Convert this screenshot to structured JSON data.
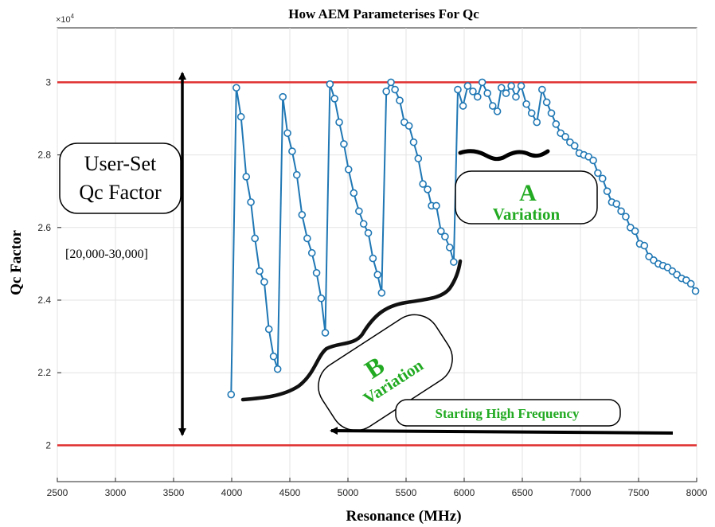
{
  "chart_data": {
    "type": "line",
    "title": "How AEM Parameterises For Qc",
    "xlabel": "Resonance (MHz)",
    "ylabel": "Qc Factor",
    "y_exponent_label": "×10",
    "y_exponent_power": "4",
    "xlim": [
      2500,
      8000
    ],
    "ylim": [
      1.9,
      3.15
    ],
    "x_ticks": [
      2500,
      3000,
      3500,
      4000,
      4500,
      5000,
      5500,
      6000,
      6500,
      7000,
      7500,
      8000
    ],
    "x_tick_labels": [
      "2500",
      "3000",
      "3500",
      "4000",
      "4500",
      "5000",
      "5500",
      "6000",
      "6500",
      "7000",
      "7500",
      "8000"
    ],
    "y_ticks": [
      2.0,
      2.2,
      2.4,
      2.6,
      2.8,
      3.0
    ],
    "y_tick_labels": [
      "2",
      "2.2",
      "2.4",
      "2.6",
      "2.8",
      "3"
    ],
    "grid": true,
    "line_color": "#1f77b4",
    "bound_color": "#e03030",
    "upper_bound": 3.0,
    "lower_bound": 2.0,
    "series": [
      {
        "x": [
          3995,
          4040,
          4080,
          4125,
          4165,
          4200,
          4240,
          4280,
          4320,
          4360,
          4395,
          4440,
          4480,
          4520,
          4560,
          4605,
          4650,
          4690,
          4730,
          4770,
          4805,
          4845,
          4885,
          4925,
          4965,
          5005,
          5050,
          5095,
          5135,
          5175,
          5215,
          5255,
          5290,
          5330,
          5370,
          5405,
          5445,
          5485,
          5525,
          5565,
          5605,
          5645,
          5685,
          5720,
          5760,
          5800,
          5835,
          5875,
          5910,
          5945,
          5990,
          6030,
          6075,
          6115,
          6155,
          6200,
          6245,
          6285,
          6320,
          6360,
          6405,
          6445,
          6490,
          6535,
          6580,
          6625,
          6670,
          6710,
          6750,
          6790,
          6830,
          6870,
          6910,
          6950,
          6990,
          7030,
          7070,
          7110,
          7150,
          7190,
          7230,
          7270,
          7310,
          7350,
          7390,
          7430,
          7470,
          7510,
          7550,
          7590,
          7630,
          7670,
          7710,
          7750,
          7790,
          7830,
          7870,
          7910,
          7950,
          7990
        ],
        "y": [
          2.14,
          2.985,
          2.905,
          2.74,
          2.67,
          2.57,
          2.48,
          2.45,
          2.32,
          2.245,
          2.21,
          2.96,
          2.86,
          2.81,
          2.745,
          2.635,
          2.57,
          2.53,
          2.475,
          2.405,
          2.31,
          2.995,
          2.955,
          2.89,
          2.83,
          2.76,
          2.695,
          2.645,
          2.61,
          2.585,
          2.515,
          2.47,
          2.42,
          2.975,
          3.0,
          2.98,
          2.95,
          2.89,
          2.88,
          2.835,
          2.79,
          2.72,
          2.705,
          2.66,
          2.66,
          2.59,
          2.575,
          2.545,
          2.505,
          2.98,
          2.935,
          2.99,
          2.975,
          2.96,
          3.0,
          2.97,
          2.935,
          2.92,
          2.985,
          2.97,
          2.99,
          2.96,
          2.99,
          2.94,
          2.915,
          2.89,
          2.98,
          2.945,
          2.915,
          2.885,
          2.86,
          2.85,
          2.835,
          2.825,
          2.805,
          2.8,
          2.795,
          2.785,
          2.75,
          2.735,
          2.7,
          2.67,
          2.665,
          2.645,
          2.63,
          2.6,
          2.59,
          2.555,
          2.55,
          2.52,
          2.51,
          2.5,
          2.495,
          2.49,
          2.48,
          2.47,
          2.46,
          2.455,
          2.445,
          2.425
        ]
      }
    ]
  },
  "annotations": {
    "user_set_line1": "User-Set",
    "user_set_line2": "Qc Factor",
    "range_text": "[20,000-30,000]",
    "a_letter": "A",
    "a_word": "Variation",
    "b_letter": "B",
    "b_word": "Variation",
    "starting_high_frequency": "Starting High Frequency",
    "annotation_green": "#22aa22"
  }
}
